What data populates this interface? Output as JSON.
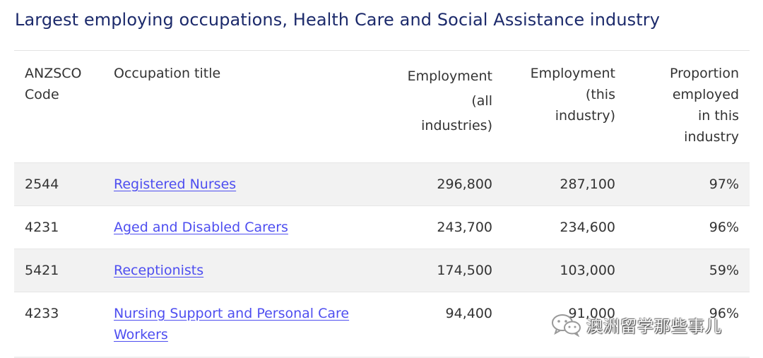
{
  "title": "Largest employing occupations, Health Care and Social Assistance industry",
  "table": {
    "headers": {
      "code": [
        "ANZSCO",
        "Code"
      ],
      "occupation": "Occupation title",
      "emp_all": [
        "Employment",
        "(all",
        "industries)"
      ],
      "emp_this": [
        "Employment",
        "(this",
        "industry)"
      ],
      "proportion": [
        "Proportion",
        "employed",
        "in this",
        "industry"
      ]
    },
    "rows": [
      {
        "code": "2544",
        "occupation": "Registered Nurses",
        "emp_all": "296,800",
        "emp_this": "287,100",
        "proportion": "97%"
      },
      {
        "code": "4231",
        "occupation": "Aged and Disabled Carers",
        "emp_all": "243,700",
        "emp_this": "234,600",
        "proportion": "96%"
      },
      {
        "code": "5421",
        "occupation": "Receptionists",
        "emp_all": "174,500",
        "emp_this": "103,000",
        "proportion": "59%"
      },
      {
        "code": "4233",
        "occupation": [
          "Nursing Support and Personal Care",
          "Workers"
        ],
        "emp_all": "94,400",
        "emp_this": "91,000",
        "proportion": "96%"
      }
    ]
  },
  "watermark": {
    "icon": "wechat-icon",
    "text": "澳洲留学那些事儿"
  }
}
